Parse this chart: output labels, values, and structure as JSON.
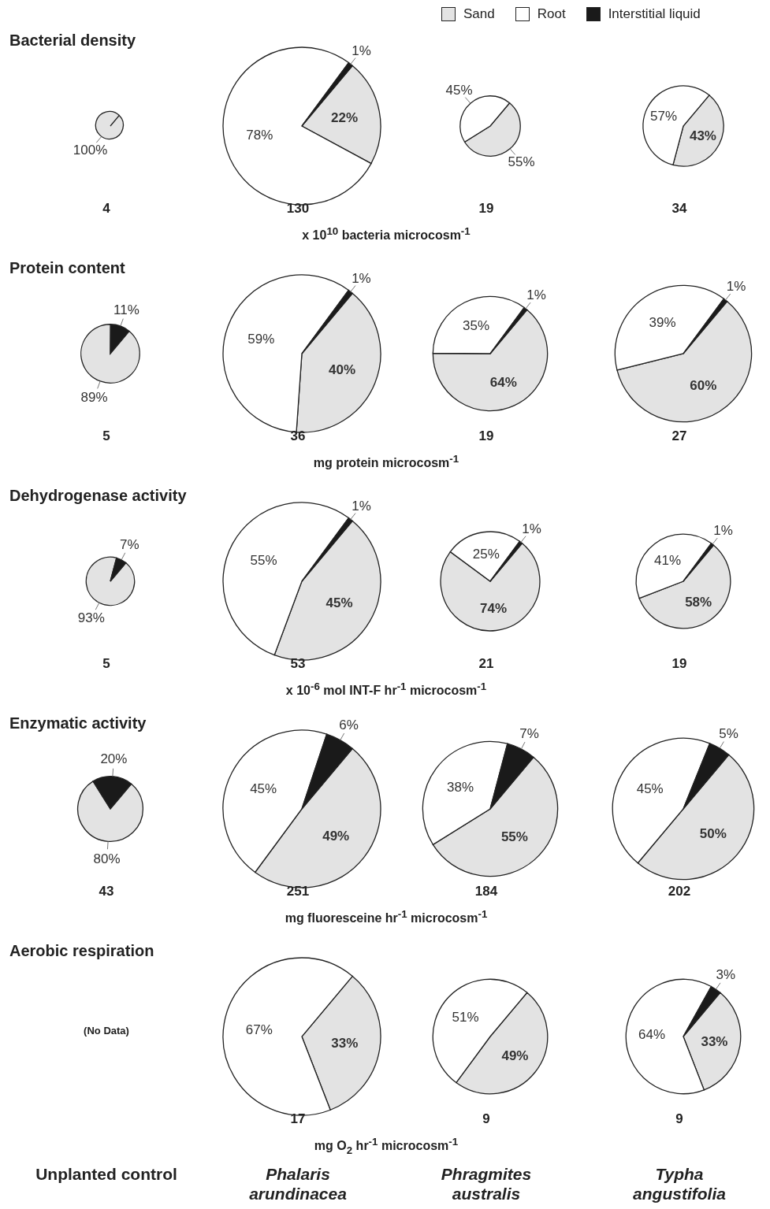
{
  "chart_data": [
    {
      "type": "pie",
      "title": "Bacterial density",
      "colors": [
        "#e3e3e3",
        "#ffffff",
        "#1a1a1a"
      ],
      "values": [
        100,
        null,
        null
      ],
      "value_labels": [
        "100%",
        null,
        null
      ],
      "xlabel": "4"
    },
    {
      "type": "pie",
      "colors": [
        "#e3e3e3",
        "#ffffff",
        "#1a1a1a"
      ],
      "values": [
        22,
        78,
        1
      ],
      "value_labels": [
        "22%",
        "78%",
        "1%"
      ],
      "xlabel": "130",
      "annotations": [
        "x 10$^{10}$ bacteria microcosm$^{-1}$"
      ]
    },
    {
      "type": "pie",
      "colors": [
        "#e3e3e3",
        "#ffffff",
        "#1a1a1a"
      ],
      "values": [
        55,
        45,
        null
      ],
      "value_labels": [
        "55%",
        "45%",
        null
      ],
      "xlabel": "19"
    },
    {
      "type": "pie",
      "categories": [
        "Sand",
        "Root",
        "Interstitial liquid"
      ],
      "colors": [
        "#e3e3e3",
        "#ffffff",
        "#1a1a1a"
      ],
      "values": [
        43,
        57,
        null
      ],
      "value_labels": [
        "43%",
        "57%",
        null
      ],
      "xlabel": "34",
      "legend": "top"
    },
    {
      "type": "pie",
      "title": "Protein content",
      "colors": [
        "#e3e3e3",
        "#ffffff",
        "#1a1a1a"
      ],
      "values": [
        89,
        null,
        11
      ],
      "value_labels": [
        "89%",
        null,
        "11%"
      ],
      "xlabel": "5"
    },
    {
      "type": "pie",
      "colors": [
        "#e3e3e3",
        "#ffffff",
        "#1a1a1a"
      ],
      "values": [
        40,
        59,
        1
      ],
      "value_labels": [
        "40%",
        "59%",
        "1%"
      ],
      "xlabel": "36",
      "annotations": [
        "mg protein microcosm$^{-1}$"
      ]
    },
    {
      "type": "pie",
      "colors": [
        "#e3e3e3",
        "#ffffff",
        "#1a1a1a"
      ],
      "values": [
        64,
        35,
        1
      ],
      "value_labels": [
        "64%",
        "35%",
        "1%"
      ],
      "xlabel": "19"
    },
    {
      "type": "pie",
      "colors": [
        "#e3e3e3",
        "#ffffff",
        "#1a1a1a"
      ],
      "values": [
        60,
        39,
        1
      ],
      "value_labels": [
        "60%",
        "39%",
        "1%"
      ],
      "xlabel": "27"
    },
    {
      "type": "pie",
      "title": "Dehydrogenase activity",
      "colors": [
        "#e3e3e3",
        "#ffffff",
        "#1a1a1a"
      ],
      "values": [
        93,
        null,
        7
      ],
      "value_labels": [
        "93%",
        null,
        "7%"
      ],
      "xlabel": "5"
    },
    {
      "type": "pie",
      "colors": [
        "#e3e3e3",
        "#ffffff",
        "#1a1a1a"
      ],
      "values": [
        45,
        55,
        1
      ],
      "value_labels": [
        "45%",
        "55%",
        "1%"
      ],
      "xlabel": "53",
      "annotations": [
        "x 10$^{-6}$ mol INT-F hr$^{-1}$ microcosm$^{-1}$"
      ]
    },
    {
      "type": "pie",
      "colors": [
        "#e3e3e3",
        "#ffffff",
        "#1a1a1a"
      ],
      "values": [
        74,
        25,
        1
      ],
      "value_labels": [
        "74%",
        "25%",
        "1%"
      ],
      "xlabel": "21"
    },
    {
      "type": "pie",
      "colors": [
        "#e3e3e3",
        "#ffffff",
        "#1a1a1a"
      ],
      "values": [
        58,
        41,
        1
      ],
      "value_labels": [
        "58%",
        "41%",
        "1%"
      ],
      "xlabel": "19"
    },
    {
      "type": "pie",
      "title": "Enzymatic activity",
      "colors": [
        "#e3e3e3",
        "#ffffff",
        "#1a1a1a"
      ],
      "values": [
        80,
        null,
        20
      ],
      "value_labels": [
        "80%",
        null,
        "20%"
      ],
      "xlabel": "43"
    },
    {
      "type": "pie",
      "colors": [
        "#e3e3e3",
        "#ffffff",
        "#1a1a1a"
      ],
      "values": [
        49,
        45,
        6
      ],
      "value_labels": [
        "49%",
        "45%",
        "6%"
      ],
      "xlabel": "251",
      "annotations": [
        "mg fluoresceine hr$^{-1}$ microcosm$^{-1}$"
      ]
    },
    {
      "type": "pie",
      "colors": [
        "#e3e3e3",
        "#ffffff",
        "#1a1a1a"
      ],
      "values": [
        55,
        38,
        7
      ],
      "value_labels": [
        "55%",
        "38%",
        "7%"
      ],
      "xlabel": "184"
    },
    {
      "type": "pie",
      "colors": [
        "#e3e3e3",
        "#ffffff",
        "#1a1a1a"
      ],
      "values": [
        50,
        45,
        5
      ],
      "value_labels": [
        "50%",
        "45%",
        "5%"
      ],
      "xlabel": "202"
    },
    {
      "type": "other",
      "title": "Aerobic respiration",
      "annotations": [
        "(No Data)",
        "Unplanted control"
      ]
    },
    {
      "type": "pie",
      "colors": [
        "#e3e3e3",
        "#ffffff",
        "#1a1a1a"
      ],
      "values": [
        33,
        67,
        null
      ],
      "value_labels": [
        "33%",
        "67%",
        null
      ],
      "xlabel": "17",
      "annotations": [
        "mg O$_{2}$ hr$^{-1}$ microcosm$^{-1}$",
        "Phalaris arundinacea"
      ]
    },
    {
      "type": "pie",
      "colors": [
        "#e3e3e3",
        "#ffffff",
        "#1a1a1a"
      ],
      "values": [
        49,
        51,
        null
      ],
      "value_labels": [
        "49%",
        "51%",
        null
      ],
      "xlabel": "9",
      "annotations": [
        "Phragmites australis"
      ]
    },
    {
      "type": "pie",
      "colors": [
        "#e3e3e3",
        "#ffffff",
        "#1a1a1a"
      ],
      "values": [
        33,
        64,
        3
      ],
      "value_labels": [
        "33%",
        "64%",
        "3%"
      ],
      "xlabel": "9",
      "annotations": [
        "Typha angustifolia"
      ]
    }
  ]
}
